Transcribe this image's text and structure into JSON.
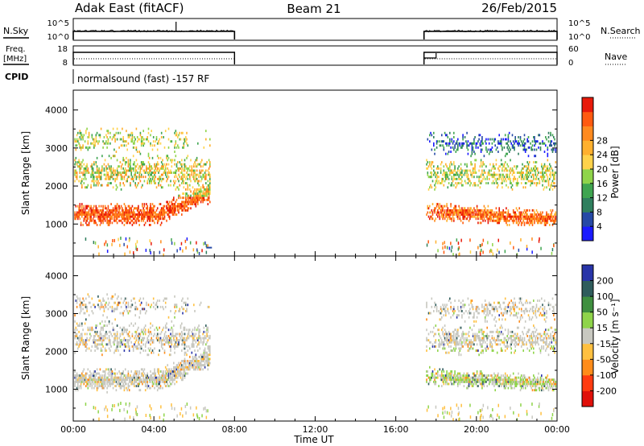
{
  "header": {
    "station": "Adak East (fitACF)",
    "beam": "Beam 21",
    "date": "26/Feb/2015"
  },
  "labels": {
    "nsky": "N.Sky",
    "nsearch": "N.Search",
    "freq_top": "Freq.",
    "freq_unit": "[MHz]",
    "nave": "Nave",
    "cpid": "CPID",
    "cpid_value": "normalsound (fast) -157 RF",
    "slant_range": "Slant Range [km]",
    "time_axis": "Time UT"
  },
  "chart_data": [
    {
      "type": "line",
      "name": "noise_panel",
      "left_ticks": [
        "10^5",
        "10^0"
      ],
      "right_ticks": [
        "10^5",
        "10^0"
      ],
      "segments_hours": [
        [
          0.0,
          8.0
        ],
        [
          17.4,
          24.0
        ]
      ]
    },
    {
      "type": "line",
      "name": "freq_nave_panel",
      "left_ticks": [
        "18",
        "8"
      ],
      "right_ticks": [
        "60",
        "0"
      ],
      "freq_mhz": 11,
      "nave": 22,
      "segments_hours": [
        [
          0.0,
          8.0
        ],
        [
          17.4,
          24.0
        ]
      ]
    },
    {
      "type": "heatmap",
      "name": "power",
      "ylabel": "Slant Range [km]",
      "yticks": [
        1000,
        2000,
        3000,
        4000
      ],
      "ylim": [
        180,
        4500
      ],
      "colorbar_label": "Power [dB]",
      "colorbar_ticks": [
        4,
        8,
        12,
        16,
        20,
        24,
        28
      ],
      "colors": [
        "#1a1aff",
        "#2649a6",
        "#2f7f5e",
        "#3fa550",
        "#8fd44a",
        "#ffd24a",
        "#ffb02e",
        "#ff8a1f",
        "#ff5a10",
        "#e81a0a"
      ]
    },
    {
      "type": "heatmap",
      "name": "velocity",
      "ylabel": "Slant Range [km]",
      "yticks": [
        1000,
        2000,
        3000,
        4000
      ],
      "ylim": [
        180,
        4500
      ],
      "colorbar_label": "Velocity [m s⁻¹]",
      "colorbar_ticks": [
        "200",
        "100",
        "50",
        "15",
        "-15",
        "-50",
        "-100",
        "-200"
      ],
      "colors": [
        "#2834a8",
        "#2f5c5c",
        "#3f8f3f",
        "#8fd44a",
        "#c8c8c0",
        "#ffc040",
        "#ff8c1a",
        "#ff3b10",
        "#e0100a"
      ]
    },
    {
      "type": "axis",
      "name": "time",
      "xlabel": "Time UT",
      "xlim": [
        0,
        24
      ],
      "xticks": [
        "00:00",
        "04:00",
        "08:00",
        "12:00",
        "16:00",
        "20:00",
        "00:00"
      ]
    }
  ]
}
